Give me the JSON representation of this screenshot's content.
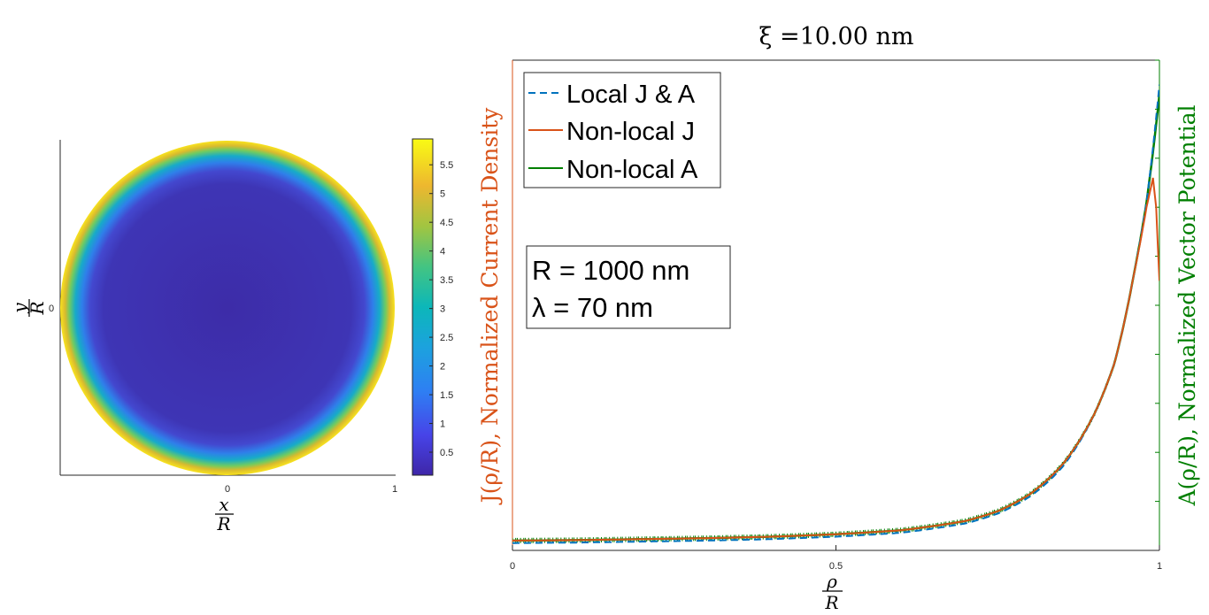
{
  "chart_data": [
    {
      "type": "heatmap",
      "description": "Filled contour of current density over a disk",
      "xlabel_num": "x",
      "xlabel_den": "R",
      "ylabel_num": "y",
      "ylabel_den": "R",
      "x_ticks": [
        "0",
        "1"
      ],
      "y_ticks": [
        "0"
      ],
      "colorbar_ticks": [
        "0.5",
        "1",
        "1.5",
        "2",
        "2.5",
        "3",
        "3.5",
        "4",
        "4.5",
        "5",
        "5.5"
      ],
      "colorbar_range": [
        0.1,
        5.95
      ],
      "colormap": "parula",
      "profile_note": "value low in interior, rising sharply to ~5.9 at the rim"
    },
    {
      "type": "line",
      "title": "ξ =10.00 nm",
      "xlabel_num": "ρ",
      "xlabel_den": "R",
      "x_ticks": [
        "0",
        "0.5",
        "1"
      ],
      "ylabel_left": "J(ρ/R), Normalized Current Density",
      "ylabel_right": "A(ρ/R), Normalized Vector Potential",
      "left_axis_color": "#D95319",
      "right_axis_color": "#007F00",
      "xlim": [
        0,
        1
      ],
      "ylim": [
        0,
        1
      ],
      "legend": {
        "position": "top-left",
        "entries": [
          {
            "label": "Local J & A",
            "color": "#0072BD",
            "style": "dashed"
          },
          {
            "label": "Non-local J",
            "color": "#D95319",
            "style": "solid"
          },
          {
            "label": "Non-local A",
            "color": "#007F00",
            "style": "solid"
          }
        ]
      },
      "annotation": {
        "line1": "R = 1000 nm",
        "line2": "λ = 70 nm"
      },
      "series": [
        {
          "name": "Local J & A",
          "x": [
            0,
            0.1,
            0.2,
            0.3,
            0.4,
            0.5,
            0.6,
            0.7,
            0.75,
            0.8,
            0.85,
            0.9,
            0.93,
            0.96,
            0.98,
            1.0
          ],
          "values": [
            0.015,
            0.016,
            0.018,
            0.02,
            0.023,
            0.028,
            0.036,
            0.055,
            0.075,
            0.11,
            0.17,
            0.28,
            0.38,
            0.56,
            0.71,
            0.95
          ]
        },
        {
          "name": "Non-local J",
          "x": [
            0,
            0.1,
            0.2,
            0.3,
            0.4,
            0.5,
            0.6,
            0.7,
            0.75,
            0.8,
            0.85,
            0.9,
            0.93,
            0.96,
            0.98,
            0.99,
            0.995,
            1.0
          ],
          "values": [
            0.02,
            0.021,
            0.023,
            0.025,
            0.028,
            0.033,
            0.041,
            0.06,
            0.08,
            0.115,
            0.175,
            0.28,
            0.38,
            0.56,
            0.7,
            0.76,
            0.7,
            0.55
          ]
        },
        {
          "name": "Non-local A",
          "x": [
            0,
            0.1,
            0.2,
            0.3,
            0.4,
            0.5,
            0.6,
            0.7,
            0.75,
            0.8,
            0.85,
            0.9,
            0.93,
            0.96,
            0.98,
            1.0
          ],
          "values": [
            0.02,
            0.021,
            0.023,
            0.025,
            0.028,
            0.033,
            0.041,
            0.06,
            0.08,
            0.115,
            0.175,
            0.28,
            0.38,
            0.56,
            0.71,
            0.93
          ]
        }
      ]
    }
  ]
}
